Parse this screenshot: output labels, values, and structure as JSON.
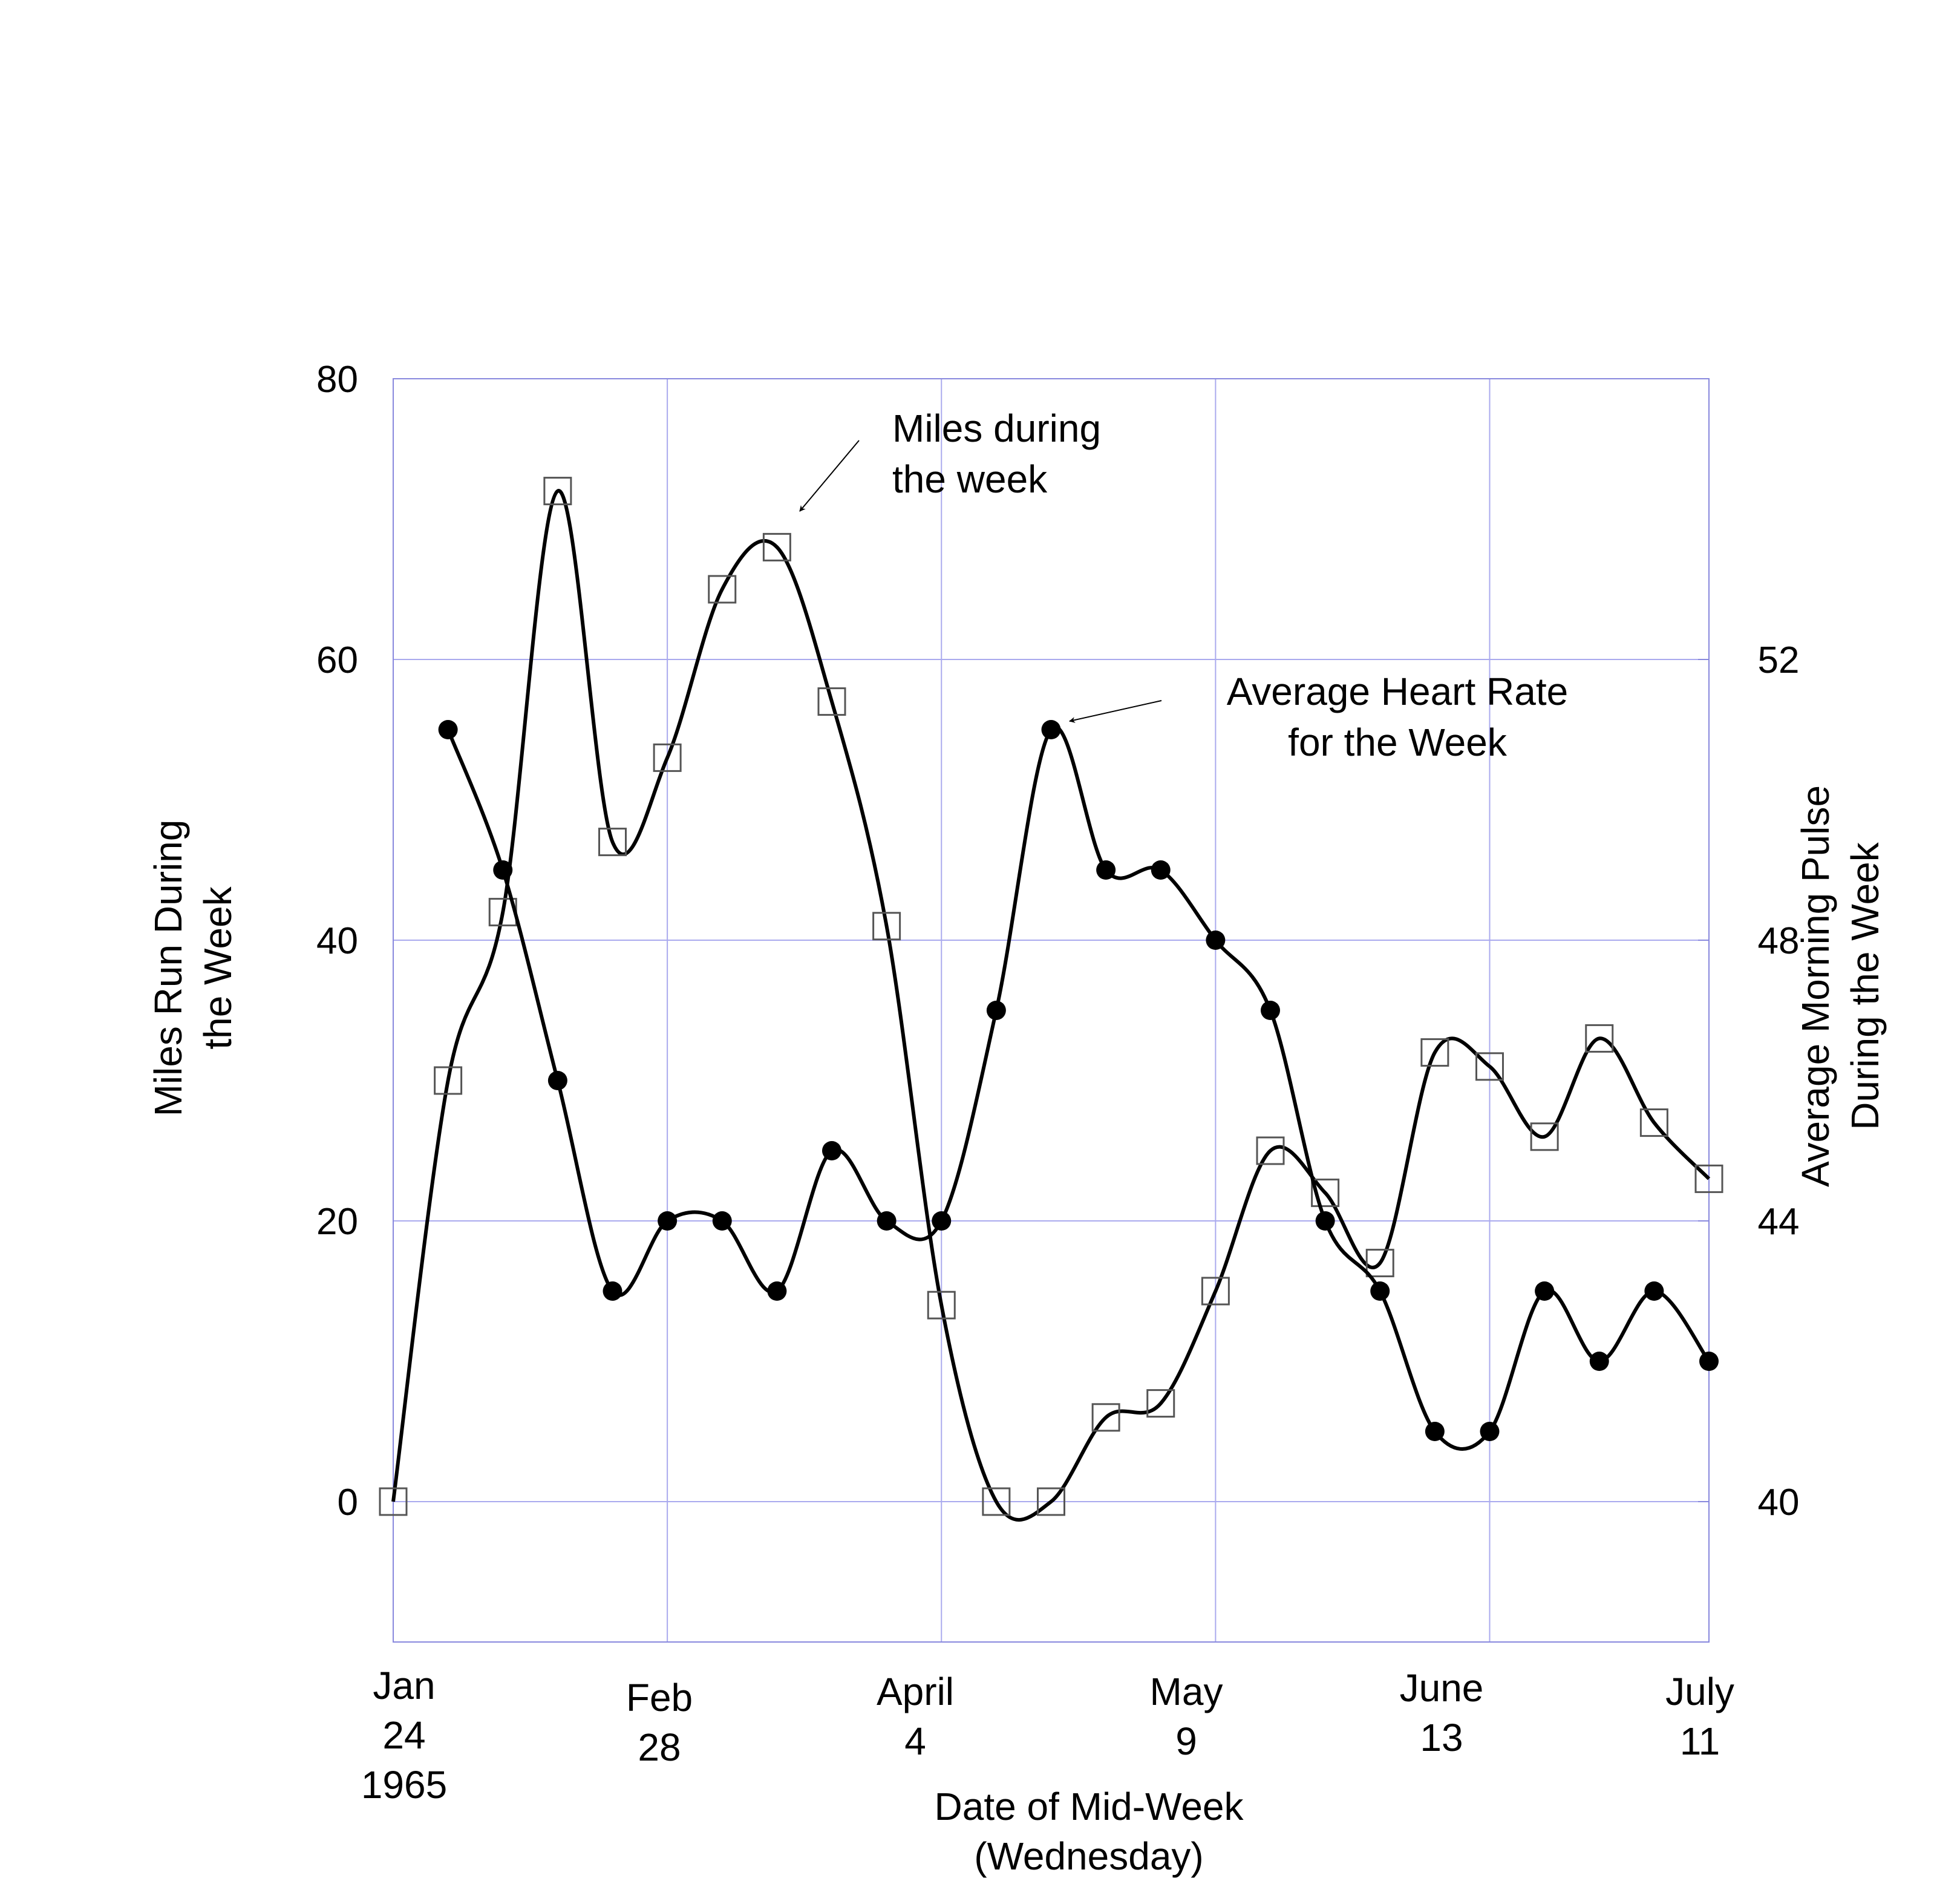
{
  "chart_data": {
    "type": "line",
    "xlabel": [
      "Date of Mid-Week",
      "(Wednesday)"
    ],
    "ylabel_left": [
      "Miles Run During",
      "the Week"
    ],
    "ylabel_right": [
      "Average Morning Pulse",
      "During the Week"
    ],
    "ylim_left": [
      -10,
      80
    ],
    "ylim_right": [
      38,
      56
    ],
    "yticks_left": [
      "0",
      "20",
      "40",
      "60",
      "80"
    ],
    "yticks_right": [
      "40",
      "44",
      "48",
      "52"
    ],
    "x_tick_labels": [
      [
        "Jan",
        "24",
        "1965"
      ],
      [
        "Feb",
        "28"
      ],
      [
        "April",
        "4"
      ],
      [
        "May",
        "9"
      ],
      [
        "June",
        "13"
      ],
      [
        "July",
        "11"
      ]
    ],
    "grid": true,
    "series": [
      {
        "marker": "open-square",
        "axis": "left",
        "x": [
          "Jan 24",
          "Jan 31",
          "Feb 7",
          "Feb 14",
          "Feb 21",
          "Feb 28",
          "Mar 7",
          "Mar 14",
          "Mar 21",
          "Mar 28",
          "Apr 4",
          "Apr 11",
          "Apr 18",
          "Apr 25",
          "May 2",
          "May 9",
          "May 16",
          "May 23",
          "May 30",
          "Jun 6",
          "Jun 13",
          "Jun 20",
          "Jun 27",
          "Jul 4",
          "Jul 11"
        ],
        "values": [
          0,
          30,
          42,
          72,
          47,
          53,
          65,
          68,
          57,
          41,
          14,
          0,
          0,
          6,
          7,
          15,
          25,
          22,
          17,
          32,
          31,
          26,
          33,
          27,
          23
        ]
      },
      {
        "marker": "filled-circle",
        "axis": "right",
        "x": [
          "Jan 31",
          "Feb 7",
          "Feb 14",
          "Feb 21",
          "Feb 28",
          "Mar 7",
          "Mar 14",
          "Mar 21",
          "Mar 28",
          "Apr 4",
          "Apr 11",
          "Apr 18",
          "Apr 25",
          "May 2",
          "May 9",
          "May 16",
          "May 23",
          "May 30",
          "Jun 6",
          "Jun 13",
          "Jun 20",
          "Jun 27",
          "Jul 4",
          "Jul 11"
        ],
        "values": [
          51,
          49,
          46,
          43,
          44,
          44,
          43,
          45,
          44,
          44,
          47,
          51,
          49,
          49,
          48,
          47,
          44,
          43,
          41,
          41,
          43,
          42,
          43,
          42
        ]
      }
    ],
    "annotations": [
      {
        "text": [
          "Miles during",
          "the week"
        ],
        "points_to": "miles-series"
      },
      {
        "text": [
          "Average Heart Rate",
          "for the Week"
        ],
        "points_to": "pulse-series"
      }
    ]
  }
}
